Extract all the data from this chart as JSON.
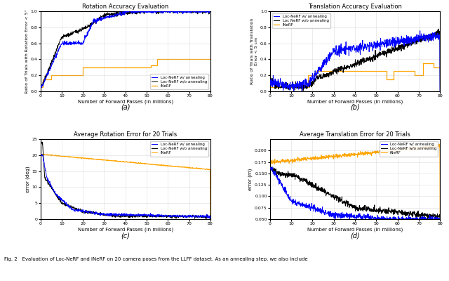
{
  "fig_title": "Fig. 2   Evaluation of Loc-NeRF and iNeRF on 20 camera poses from the LLFF dataset. As an annealing step, we also include",
  "subplot_labels": [
    "(a)",
    "(b)",
    "(c)",
    "(d)"
  ],
  "plot_a": {
    "title": "Rotation Accuracy Evaluation",
    "xlabel": "Number of Forward Passes (in millions)",
    "ylabel": "Ratio of Trials with Rotation Error < 5°",
    "ylim": [
      0.0,
      1.0
    ],
    "xlim": [
      0,
      80
    ],
    "yticks": [
      0.0,
      0.2,
      0.4,
      0.6,
      0.8,
      1.0
    ],
    "xticks": [
      0,
      10,
      20,
      30,
      40,
      50,
      60,
      70,
      80
    ],
    "legend": [
      "Loc-NeRF w/ annealing",
      "Loc-NeRF w/o annealing",
      "iNeRF"
    ],
    "colors": [
      "#0000ff",
      "#000000",
      "#ffa500"
    ]
  },
  "plot_b": {
    "title": "Translation Accuracy Evaluation",
    "xlabel": "Number of Forward Passes (in millions)",
    "ylabel": "Ratio of Trials with Translation\nError < 5 cm",
    "ylim": [
      0.0,
      1.0
    ],
    "xlim": [
      0,
      80
    ],
    "yticks": [
      0.0,
      0.2,
      0.4,
      0.6,
      0.8,
      1.0
    ],
    "xticks": [
      0,
      10,
      20,
      30,
      40,
      50,
      60,
      70,
      80
    ],
    "legend": [
      "Loc-NeRF w/ annealing",
      "Loc NeRF w/o annealing",
      "iNeRF"
    ],
    "colors": [
      "#0000ff",
      "#000000",
      "#ffa500"
    ]
  },
  "plot_c": {
    "title": "Average Rotation Error for 20 Trials",
    "xlabel": "Number of Forward Passes (in millions)",
    "ylabel": "error (deg)",
    "ylim": [
      0,
      25
    ],
    "xlim": [
      0,
      80
    ],
    "yticks": [
      0,
      5,
      10,
      15,
      20,
      25
    ],
    "xticks": [
      0,
      10,
      20,
      30,
      40,
      50,
      60,
      70,
      80
    ],
    "legend": [
      "Loc-NeRF w/ annealing",
      "Loc-NeRF w/o annealing",
      "iNeRF"
    ],
    "colors": [
      "#0000ff",
      "#000000",
      "#ffa500"
    ]
  },
  "plot_d": {
    "title": "Average Translation Error for 20 Trials",
    "xlabel": "Number of Forward Passes (in millions)",
    "ylabel": "error (m)",
    "ylim": [
      0.05,
      0.225
    ],
    "xlim": [
      0,
      80
    ],
    "yticks": [
      0.05,
      0.075,
      0.1,
      0.125,
      0.15,
      0.175,
      0.2
    ],
    "xticks": [
      0,
      10,
      20,
      30,
      40,
      50,
      60,
      70,
      80
    ],
    "legend": [
      "Loc-NeRF w/ annealing",
      "Loc-NeRF w/o annealing",
      "iNeRF"
    ],
    "colors": [
      "#0000ff",
      "#000000",
      "#ffa500"
    ]
  }
}
